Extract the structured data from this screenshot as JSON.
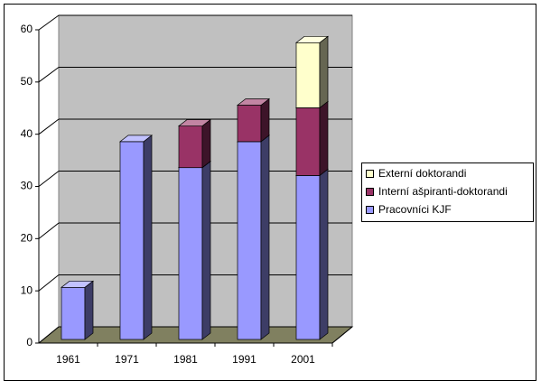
{
  "chart_data": {
    "type": "bar",
    "stacked": true,
    "categories": [
      "1961",
      "1971",
      "1981",
      "1991",
      "2001"
    ],
    "series": [
      {
        "name": "Pracovníci KJF",
        "color": "#9999ff",
        "values": [
          10,
          38,
          33,
          38,
          31.5
        ]
      },
      {
        "name": "Interní ašpiranti-doktorandi",
        "color": "#993366",
        "values": [
          null,
          null,
          8,
          7,
          13
        ]
      },
      {
        "name": "Externí doktorandi",
        "color": "#ffffcc",
        "values": [
          null,
          null,
          null,
          null,
          12.5
        ]
      }
    ],
    "ylim": [
      0,
      60
    ],
    "yticks": [
      0,
      10,
      20,
      30,
      40,
      50,
      60
    ],
    "grid": true,
    "legend": "right"
  }
}
